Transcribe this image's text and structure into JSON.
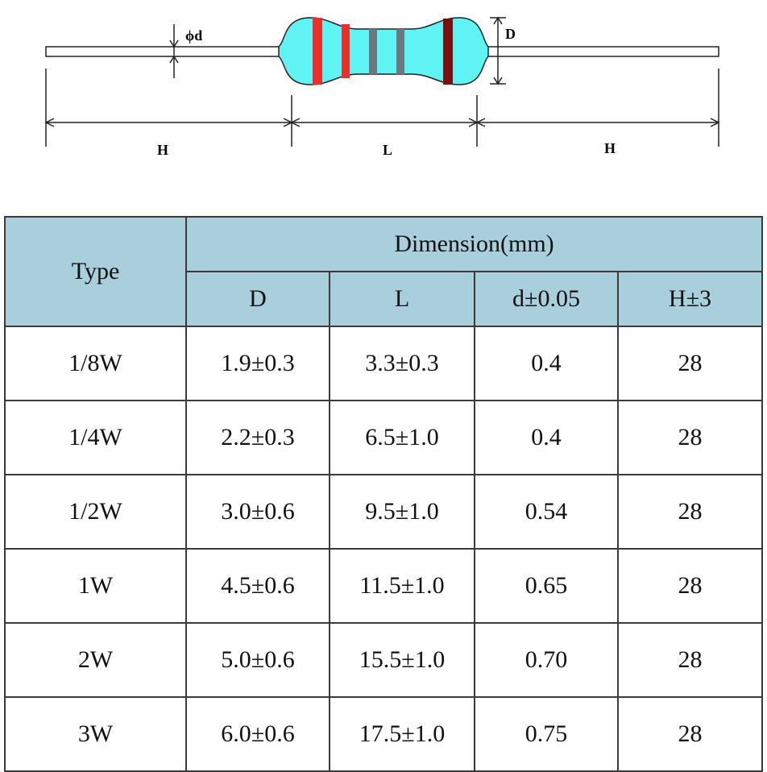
{
  "diagram": {
    "labels": [
      "ϕd",
      "D",
      "H",
      "L",
      "H"
    ]
  },
  "table": {
    "header": [
      "Type",
      "Dimension(mm)"
    ],
    "subheader": [
      "D",
      "L",
      "d±0.05",
      "H±3"
    ],
    "rows": [
      [
        "1/8W",
        "1.9±0.3",
        "3.3±0.3",
        "0.4",
        "28"
      ],
      [
        "1/4W",
        "2.2±0.3",
        "6.5±1.0",
        "0.4",
        "28"
      ],
      [
        "1/2W",
        "3.0±0.6",
        "9.5±1.0",
        "0.54",
        "28"
      ],
      [
        "1W",
        "4.5±0.6",
        "11.5±1.0",
        "0.65",
        "28"
      ],
      [
        "2W",
        "5.0±0.6",
        "15.5±1.0",
        "0.70",
        "28"
      ],
      [
        "3W",
        "6.0±0.6",
        "17.5±1.0",
        "0.75",
        "28"
      ]
    ]
  }
}
